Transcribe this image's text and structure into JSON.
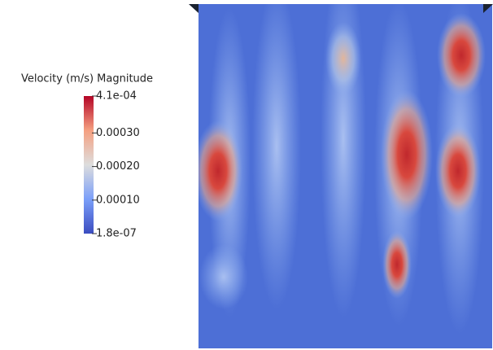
{
  "colorbar": {
    "title": "Velocity (m/s) Magnitude",
    "range": [
      1.8e-07,
      0.00041
    ],
    "ticks": [
      {
        "value": 0.00041,
        "label": "4.1e-04"
      },
      {
        "value": 0.0003,
        "label": "0.00030"
      },
      {
        "value": 0.0002,
        "label": "0.00020"
      },
      {
        "value": 0.0001,
        "label": "0.00010"
      },
      {
        "value": 1.8e-07,
        "label": "1.8e-07"
      }
    ]
  }
}
